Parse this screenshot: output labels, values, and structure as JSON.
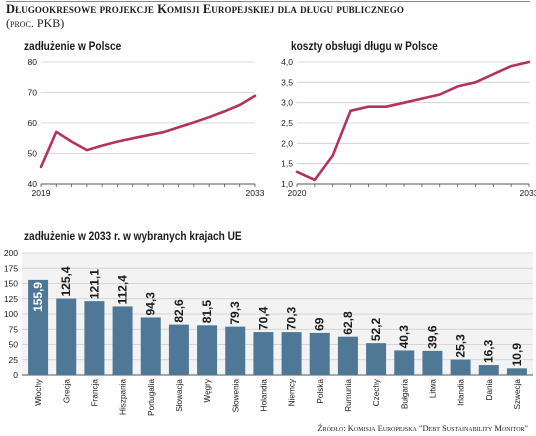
{
  "title": "Długookresowe projekcje Komisji Europejskiej dla długu publicznego",
  "subtitle": "(proc. PKB)",
  "source": "Źródło: Komisja Europejska \"Debt Sustainability Monitor\"",
  "colors": {
    "line": "#b5325a",
    "bar": "#4f7896",
    "grid": "#cccccc",
    "panel_bg": "#f3f3f3"
  },
  "chart_data": [
    {
      "type": "line",
      "title": "zadłużenie w Polsce",
      "x_tick_labels": [
        "2019",
        "2033"
      ],
      "x": [
        2019,
        2020,
        2021,
        2022,
        2023,
        2024,
        2025,
        2026,
        2027,
        2028,
        2029,
        2030,
        2031,
        2032,
        2033
      ],
      "y": [
        45.6,
        57.1,
        53.9,
        51.1,
        52.6,
        53.9,
        55.0,
        56.0,
        57.0,
        58.6,
        60.2,
        61.9,
        63.8,
        65.9,
        68.9
      ],
      "ylim": [
        40,
        80
      ],
      "yticks": [
        40,
        50,
        60,
        70,
        80
      ],
      "grid": true
    },
    {
      "type": "line",
      "title": "koszty obsługi długu w Polsce",
      "x_tick_labels": [
        "2020",
        "2033"
      ],
      "x": [
        2020,
        2021,
        2022,
        2023,
        2024,
        2025,
        2026,
        2027,
        2028,
        2029,
        2030,
        2031,
        2032,
        2033
      ],
      "y": [
        1.3,
        1.1,
        1.7,
        2.8,
        2.9,
        2.9,
        3.0,
        3.1,
        3.2,
        3.4,
        3.5,
        3.7,
        3.9,
        4.0
      ],
      "ylim": [
        1.0,
        4.0
      ],
      "yticks": [
        "1,0",
        "1,5",
        "2,0",
        "2,5",
        "3,0",
        "3,5",
        "4,0"
      ],
      "grid": true
    },
    {
      "type": "bar",
      "title": "zadłużenie w 2033 r. w wybranych krajach UE",
      "categories": [
        "Włochy",
        "Grecja",
        "Francja",
        "Hiszpania",
        "Portugalia",
        "Słowacja",
        "Węgry",
        "Słowenia",
        "Holandia",
        "Niemcy",
        "Polska",
        "Rumunia",
        "Czechy",
        "Bułgaria",
        "Litwa",
        "Irlandia",
        "Dania",
        "Szwecja"
      ],
      "values": [
        155.9,
        125.4,
        121.1,
        112.4,
        94.3,
        82.6,
        81.5,
        79.3,
        70.4,
        70.3,
        69,
        62.8,
        52.2,
        40.3,
        39.6,
        25.3,
        16.3,
        10.9
      ],
      "value_labels": [
        "155,9",
        "125,4",
        "121,1",
        "112,4",
        "94,3",
        "82,6",
        "81,5",
        "79,3",
        "70,4",
        "70,3",
        "69",
        "62,8",
        "52,2",
        "40,3",
        "39,6",
        "25,3",
        "16,3",
        "10,9"
      ],
      "ylim": [
        0,
        200
      ],
      "yticks": [
        0,
        25,
        50,
        75,
        100,
        125,
        150,
        175,
        200
      ],
      "grid": true
    }
  ]
}
